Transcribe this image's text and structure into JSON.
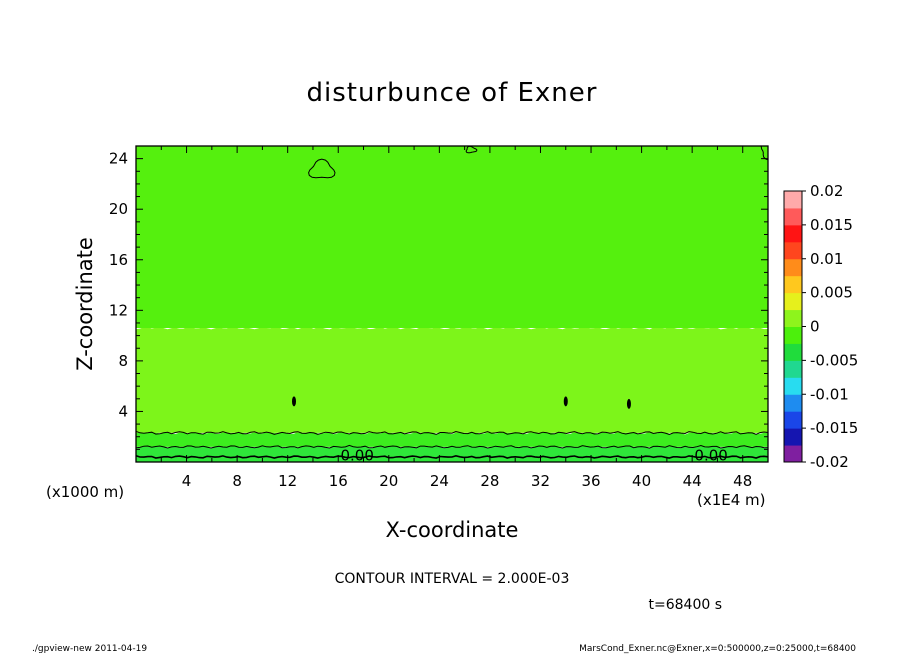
{
  "chart_data": {
    "type": "heatmap",
    "title": "disturbunce of Exner",
    "xlabel": "X-coordinate",
    "ylabel": "Z-coordinate",
    "x_unit_left": "(x1000 m)",
    "x_unit_right": "(x1E4 m)",
    "x_ticks": [
      "4",
      "8",
      "12",
      "16",
      "20",
      "24",
      "28",
      "32",
      "36",
      "40",
      "44",
      "48"
    ],
    "y_ticks": [
      "4",
      "8",
      "12",
      "16",
      "20",
      "24"
    ],
    "xlim": [
      0,
      50
    ],
    "ylim": [
      0,
      25
    ],
    "colorbar": {
      "labels": [
        "0.02",
        "0.015",
        "0.01",
        "0.005",
        "0",
        "-0.005",
        "-0.01",
        "-0.015",
        "-0.02"
      ],
      "range": [
        -0.02,
        0.02
      ],
      "colors": [
        "#7f1fa0",
        "#1515b0",
        "#1a46e8",
        "#1e8cf0",
        "#28dcf0",
        "#20d890",
        "#20dc3c",
        "#4cf00c",
        "#8ef41c",
        "#e6f01c",
        "#ffc81e",
        "#ff8c1a",
        "#ff461e",
        "#ff1414",
        "#ff5a5a",
        "#ffaaaa"
      ]
    },
    "bands": [
      {
        "z_low": 0.0,
        "z_high": 1.2,
        "level": "-0.002",
        "color": "#2fe63a"
      },
      {
        "z_low": 1.2,
        "z_high": 2.3,
        "level": "-0.001",
        "color": "#3ded1e"
      },
      {
        "z_low": 2.3,
        "z_high": 10.6,
        "level": "0.002",
        "color": "#7df51a"
      },
      {
        "z_low": 10.6,
        "z_high": 25.0,
        "level": "0.001",
        "color": "#55f00e"
      }
    ],
    "contour_labels": [
      {
        "x": 17.5,
        "z": 0.5,
        "text": "0.00"
      },
      {
        "x": 45.5,
        "z": 0.5,
        "text": "0.00"
      }
    ],
    "contour_interval": "CONTOUR INTERVAL = 2.000E-03",
    "time": "t=68400 s"
  },
  "footer": {
    "left": "./gpview-new  2011-04-19",
    "right": "MarsCond_Exner.nc@Exner,x=0:500000,z=0:25000,t=68400"
  }
}
